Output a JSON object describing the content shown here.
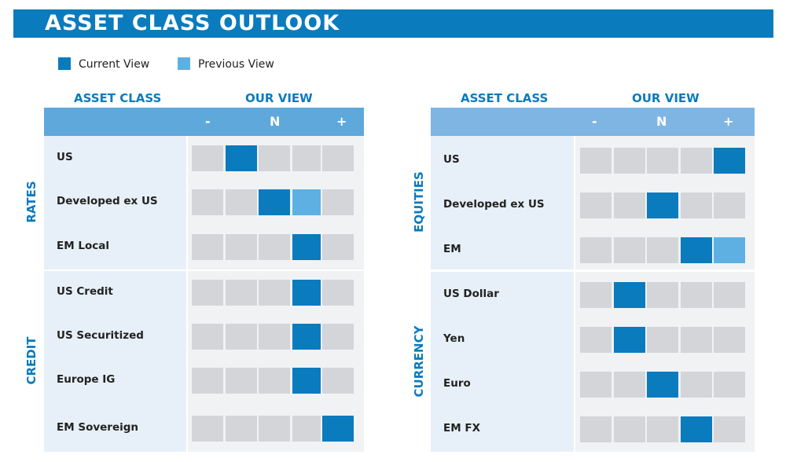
{
  "title": "ASSET CLASS OUTLOOK",
  "legend": {
    "current": "Current View",
    "previous": "Previous View"
  },
  "colors": {
    "current": "#0a7bbd",
    "previous": "#5fb0e2",
    "empty": "#d3d5d9",
    "header_left": "#5fa8dc",
    "header_right": "#7fb5e2"
  },
  "headers": {
    "asset_class": "ASSET CLASS",
    "our_view": "OUR VIEW",
    "minus": "-",
    "neutral": "N",
    "plus": "+"
  },
  "chart_data": {
    "type": "table",
    "scale": [
      "-",
      "",
      "N",
      "",
      "+"
    ],
    "panels": [
      {
        "groups": [
          {
            "name": "RATES",
            "rows": [
              {
                "label": "US",
                "current": 2
              },
              {
                "label": "Developed ex US",
                "current": 3,
                "previous": 4
              },
              {
                "label": "EM Local",
                "current": 4
              }
            ]
          },
          {
            "name": "CREDIT",
            "rows": [
              {
                "label": "US Credit",
                "current": 4
              },
              {
                "label": "US Securitized",
                "current": 4
              },
              {
                "label": "Europe IG",
                "current": 4
              },
              {
                "label": "EM Sovereign",
                "current": 5
              }
            ]
          }
        ]
      },
      {
        "groups": [
          {
            "name": "EQUITIES",
            "rows": [
              {
                "label": "US",
                "current": 5
              },
              {
                "label": "Developed ex US",
                "current": 3
              },
              {
                "label": "EM",
                "current": 4,
                "previous": 5
              }
            ]
          },
          {
            "name": "CURRENCY",
            "rows": [
              {
                "label": "US Dollar",
                "current": 2
              },
              {
                "label": "Yen",
                "current": 2
              },
              {
                "label": "Euro",
                "current": 3
              },
              {
                "label": "EM FX",
                "current": 4
              }
            ]
          }
        ]
      }
    ]
  }
}
